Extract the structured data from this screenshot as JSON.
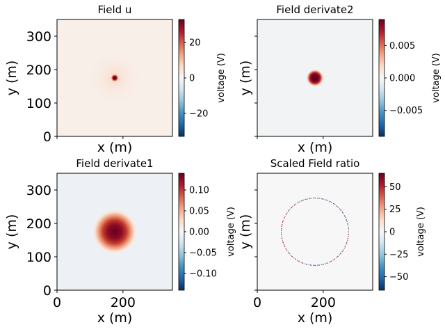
{
  "chart_data": [
    {
      "type": "heatmap",
      "title": "Field u",
      "xlabel": "x (m)",
      "ylabel": "y (m)",
      "xlim": [
        0,
        350
      ],
      "ylim": [
        0,
        350
      ],
      "xticks": [],
      "yticks": [
        "0",
        "100",
        "200",
        "300"
      ],
      "colormap": "RdBu_r",
      "background_color": "#f8efe9",
      "center": [
        175,
        175
      ],
      "peak": {
        "radius": 6,
        "color": "#67001f"
      },
      "colorbar": {
        "label": "voltage (V)",
        "range": [
          -33,
          33
        ],
        "ticks": [
          20,
          0,
          -20
        ],
        "tick_labels": [
          "20",
          "0",
          "−20"
        ]
      }
    },
    {
      "type": "heatmap",
      "title": "Field derivate2",
      "xlabel": "x (m)",
      "ylabel": "y (m)",
      "xlim": [
        0,
        350
      ],
      "ylim": [
        0,
        350
      ],
      "xticks": [],
      "yticks": [],
      "colormap": "RdBu_r",
      "background_color": "#f1f3f5",
      "center": [
        175,
        175
      ],
      "peak": {
        "radius": 12,
        "color": "#67001f"
      },
      "colorbar": {
        "label": "voltage (V)",
        "range": [
          -0.009,
          0.009
        ],
        "ticks": [
          0.005,
          0.0,
          -0.005
        ],
        "tick_labels": [
          "0.005",
          "0.000",
          "−0.005"
        ]
      }
    },
    {
      "type": "heatmap",
      "title": "Field derivate1",
      "xlabel": "x (m)",
      "ylabel": "y (m)",
      "xlim": [
        0,
        350
      ],
      "ylim": [
        0,
        350
      ],
      "xticks": [
        "0",
        "200"
      ],
      "yticks": [
        "0",
        "100",
        "200",
        "300"
      ],
      "colormap": "RdBu_r",
      "background_color": "#edf1f5",
      "center": [
        175,
        175
      ],
      "peak": {
        "radius": 32,
        "color": "#67001f"
      },
      "colorbar": {
        "label": "voltage (V)",
        "range": [
          -0.14,
          0.14
        ],
        "ticks": [
          0.1,
          0.05,
          0.0,
          -0.05,
          -0.1
        ],
        "tick_labels": [
          "0.10",
          "0.05",
          "0.00",
          "−0.05",
          "−0.10"
        ]
      }
    },
    {
      "type": "heatmap",
      "title": "Scaled Field ratio",
      "xlabel": "x (m)",
      "ylabel": "y (m)",
      "xlim": [
        0,
        350
      ],
      "ylim": [
        0,
        350
      ],
      "xticks": [
        "0",
        "200"
      ],
      "yticks": [],
      "colormap": "RdBu_r",
      "background_color": "#f7f7f7",
      "center": [
        175,
        175
      ],
      "ring": {
        "radius": 102,
        "color": "#b2182b"
      },
      "colorbar": {
        "label": "voltage (V)",
        "range": [
          -65,
          65
        ],
        "ticks": [
          50,
          25,
          0,
          -25,
          -50
        ],
        "tick_labels": [
          "50",
          "25",
          "0",
          "−25",
          "−50"
        ]
      }
    }
  ]
}
